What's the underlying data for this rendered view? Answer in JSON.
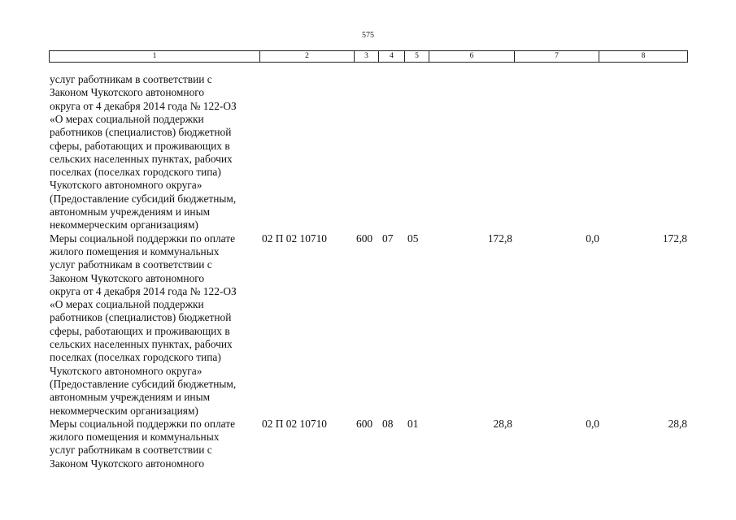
{
  "page_number": "575",
  "table": {
    "header": [
      "1",
      "2",
      "3",
      "4",
      "5",
      "6",
      "7",
      "8"
    ],
    "rows": [
      {
        "description": [
          "услуг работникам в соответствии с",
          "Законом Чукотского автономного",
          "округа от 4 декабря 2014 года № 122-ОЗ",
          "«О мерах социальной поддержки",
          "работников (специалистов) бюджетной",
          "сферы, работающих и проживающих в",
          "сельских населенных пунктах, рабочих",
          "поселках (поселках городского типа)",
          "Чукотского автономного округа»",
          "(Предоставление субсидий бюджетным,",
          "автономным учреждениям и иным",
          "некоммерческим организациям)"
        ]
      },
      {
        "description": [
          "Меры социальной поддержки по оплате",
          "жилого помещения и коммунальных",
          "услуг работникам в соответствии с",
          "Законом Чукотского автономного",
          "округа от 4 декабря 2014 года № 122-ОЗ",
          "«О мерах социальной поддержки",
          "работников (специалистов) бюджетной",
          "сферы, работающих и проживающих в",
          "сельских населенных пунктах, рабочих",
          "поселках (поселках городского типа)",
          "Чукотского автономного округа»",
          "(Предоставление субсидий бюджетным,",
          "автономным учреждениям и иным",
          "некоммерческим организациям)"
        ],
        "cells": [
          "02 П 02 10710",
          "600",
          "07",
          "05",
          "172,8",
          "0,0",
          "172,8"
        ]
      },
      {
        "description": [
          "Меры социальной поддержки по оплате",
          "жилого помещения и коммунальных",
          "услуг работникам в соответствии с",
          "Законом Чукотского автономного"
        ],
        "cells": [
          "02 П 02 10710",
          "600",
          "08",
          "01",
          "28,8",
          "0,0",
          "28,8"
        ]
      }
    ]
  }
}
